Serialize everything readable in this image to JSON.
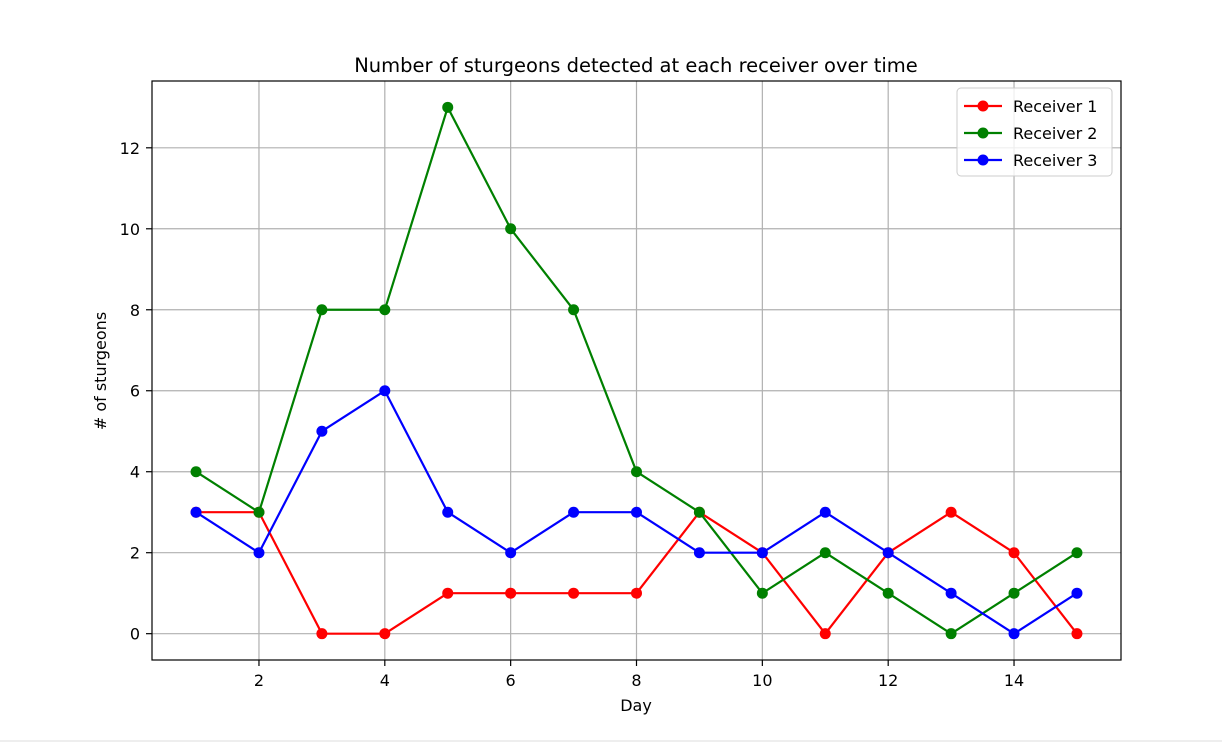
{
  "chart_data": {
    "type": "line",
    "title": "Number of sturgeons detected at each receiver over time",
    "xlabel": "Day",
    "ylabel": "# of sturgeons",
    "x": [
      1,
      2,
      3,
      4,
      5,
      6,
      7,
      8,
      9,
      10,
      11,
      12,
      13,
      14,
      15
    ],
    "xlim": [
      0.3,
      15.7
    ],
    "ylim": [
      -0.65,
      13.65
    ],
    "xticks": [
      2,
      4,
      6,
      8,
      10,
      12,
      14
    ],
    "yticks": [
      0,
      2,
      4,
      6,
      8,
      10,
      12
    ],
    "grid": true,
    "legend_position": "top-right",
    "series": [
      {
        "name": "Receiver 1",
        "color": "#ff0000",
        "values": [
          3,
          3,
          0,
          0,
          1,
          1,
          1,
          1,
          3,
          2,
          0,
          2,
          3,
          2,
          0
        ]
      },
      {
        "name": "Receiver 2",
        "color": "#008000",
        "values": [
          4,
          3,
          8,
          8,
          13,
          10,
          8,
          4,
          3,
          1,
          2,
          1,
          0,
          1,
          2
        ]
      },
      {
        "name": "Receiver 3",
        "color": "#0000ff",
        "values": [
          3,
          2,
          5,
          6,
          3,
          2,
          3,
          3,
          2,
          2,
          3,
          2,
          1,
          0,
          1
        ]
      }
    ]
  }
}
